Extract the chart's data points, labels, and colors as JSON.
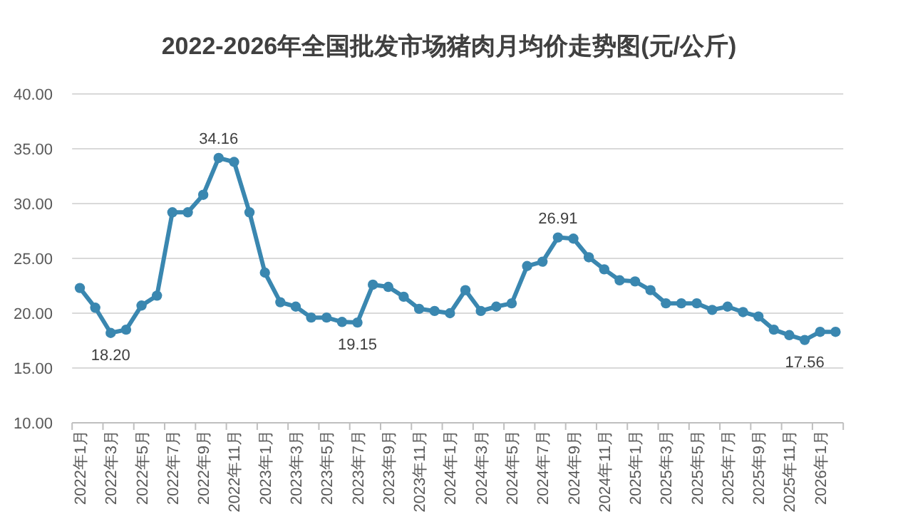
{
  "chart_data": {
    "type": "line",
    "title": "2022-2026年全国批发市场猪肉月均价走势图(元/公斤)",
    "categories": [
      "2022年1月",
      null,
      "2022年3月",
      null,
      "2022年5月",
      null,
      "2022年7月",
      null,
      "2022年9月",
      null,
      "2022年11月",
      null,
      "2023年1月",
      null,
      "2023年3月",
      null,
      "2023年5月",
      null,
      "2023年7月",
      null,
      "2023年9月",
      null,
      "2023年11月",
      null,
      "2024年1月",
      null,
      "2024年3月",
      null,
      "2024年5月",
      null,
      "2024年7月",
      null,
      "2024年9月",
      null,
      "2024年11月",
      null,
      "2025年1月",
      null,
      "2025年3月",
      null,
      "2025年5月",
      null,
      "2025年7月",
      null,
      "2025年9月",
      null,
      "2025年11月",
      null,
      "2026年1月",
      null
    ],
    "series": [
      {
        "color": "#3a87b0",
        "values": [
          22.3,
          20.5,
          18.2,
          18.5,
          20.7,
          21.6,
          29.2,
          29.2,
          30.8,
          34.16,
          33.8,
          29.2,
          23.7,
          21.0,
          20.6,
          19.6,
          19.6,
          19.2,
          19.15,
          22.6,
          22.4,
          21.5,
          20.4,
          20.2,
          20.0,
          22.1,
          20.2,
          20.6,
          20.9,
          24.3,
          24.7,
          26.91,
          26.8,
          25.1,
          24.0,
          23.0,
          22.9,
          22.1,
          20.9,
          20.9,
          20.9,
          20.3,
          20.6,
          20.1,
          19.7,
          18.5,
          18.0,
          17.56,
          18.3,
          18.3
        ],
        "value_labels": [
          null,
          null,
          "18.20",
          null,
          null,
          null,
          null,
          null,
          null,
          "34.16",
          null,
          null,
          null,
          null,
          null,
          null,
          null,
          null,
          "19.15",
          null,
          null,
          null,
          null,
          null,
          null,
          null,
          null,
          null,
          null,
          null,
          null,
          "26.91",
          null,
          null,
          null,
          null,
          null,
          null,
          null,
          null,
          null,
          null,
          null,
          null,
          null,
          null,
          null,
          "17.56",
          null,
          null
        ]
      }
    ],
    "ylim": [
      10,
      40
    ],
    "yticks": [
      {
        "value": 10,
        "label": "10.00"
      },
      {
        "value": 15,
        "label": "15.00"
      },
      {
        "value": 20,
        "label": "20.00"
      },
      {
        "value": 25,
        "label": "25.00"
      },
      {
        "value": 30,
        "label": "30.00"
      },
      {
        "value": 35,
        "label": "35.00"
      },
      {
        "value": 40,
        "label": "40.00"
      }
    ],
    "grid": "y",
    "marker": "circle"
  }
}
